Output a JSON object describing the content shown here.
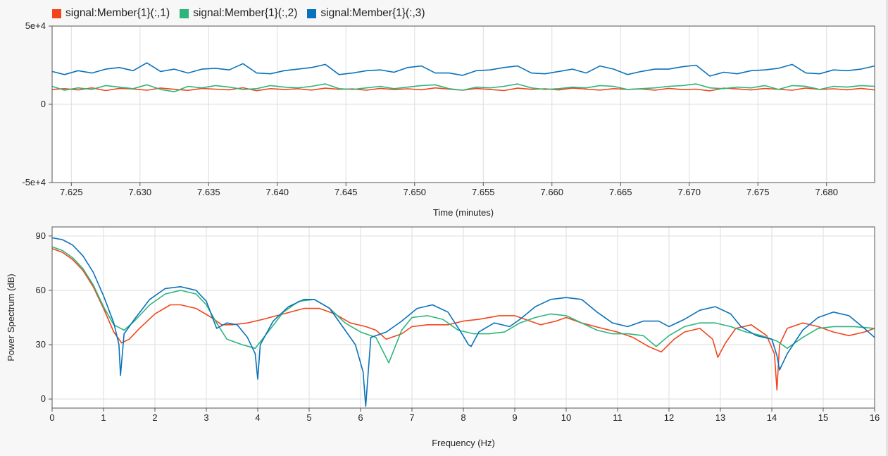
{
  "colors": {
    "series1": "#f2451c",
    "series2": "#2db57b",
    "series3": "#0a72ba",
    "grid": "#dddddd",
    "axis": "#333333"
  },
  "legend": [
    {
      "label": "signal:Member{1}(:,1)",
      "color": "#f2451c"
    },
    {
      "label": "signal:Member{1}(:,2)",
      "color": "#2db57b"
    },
    {
      "label": "signal:Member{1}(:,3)",
      "color": "#0a72ba"
    }
  ],
  "chart_data": [
    {
      "type": "line",
      "title": "",
      "xlabel": "Time (minutes)",
      "ylabel": "",
      "xlim": [
        7.6236,
        7.6835
      ],
      "ylim": [
        -50000,
        50000
      ],
      "xticks": [
        7.625,
        7.63,
        7.635,
        7.64,
        7.645,
        7.65,
        7.655,
        7.66,
        7.665,
        7.67,
        7.675,
        7.68
      ],
      "xtick_labels": [
        "7.625",
        "7.630",
        "7.635",
        "7.640",
        "7.645",
        "7.650",
        "7.655",
        "7.660",
        "7.665",
        "7.670",
        "7.675",
        "7.680"
      ],
      "yticks": [
        -50000,
        0,
        50000
      ],
      "ytick_labels": [
        "-5e+4",
        "0",
        "5e+4"
      ],
      "grid": true,
      "legend_position": "top-left",
      "series": [
        {
          "name": "signal:Member{1}(:,1)",
          "color": "#f2451c",
          "x": [
            7.6236,
            7.6245,
            7.6255,
            7.6265,
            7.6275,
            7.6285,
            7.6295,
            7.6305,
            7.6315,
            7.6325,
            7.6335,
            7.6345,
            7.6355,
            7.6365,
            7.6375,
            7.6385,
            7.6395,
            7.6405,
            7.6415,
            7.6425,
            7.6435,
            7.6445,
            7.6455,
            7.6465,
            7.6475,
            7.6485,
            7.6495,
            7.6505,
            7.6515,
            7.6525,
            7.6535,
            7.6545,
            7.6555,
            7.6565,
            7.6575,
            7.6585,
            7.6595,
            7.6605,
            7.6615,
            7.6625,
            7.6635,
            7.6645,
            7.6655,
            7.6665,
            7.6675,
            7.6685,
            7.6695,
            7.6705,
            7.6715,
            7.6725,
            7.6735,
            7.6745,
            7.6755,
            7.6765,
            7.6775,
            7.6785,
            7.6795,
            7.6805,
            7.6815,
            7.6825,
            7.6835
          ],
          "y": [
            9500,
            10000,
            9200,
            10500,
            8800,
            10200,
            9800,
            9000,
            10400,
            9600,
            8900,
            10100,
            9700,
            9300,
            10600,
            8700,
            10000,
            9500,
            9900,
            9100,
            10300,
            9600,
            9800,
            9000,
            10200,
            9400,
            9900,
            9300,
            10500,
            9700,
            9000,
            10100,
            9500,
            8800,
            10300,
            9600,
            9900,
            9200,
            10400,
            9700,
            9100,
            10000,
            9500,
            9800,
            9000,
            10200,
            9400,
            9700,
            8600,
            10300,
            9800,
            9200,
            10100,
            9600,
            9000,
            10400,
            9500,
            9900,
            9300,
            10200,
            9200
          ]
        },
        {
          "name": "signal:Member{1}(:,2)",
          "color": "#2db57b",
          "x": [
            7.6236,
            7.6245,
            7.6255,
            7.6265,
            7.6275,
            7.6285,
            7.6295,
            7.6305,
            7.6315,
            7.6325,
            7.6335,
            7.6345,
            7.6355,
            7.6365,
            7.6375,
            7.6385,
            7.6395,
            7.6405,
            7.6415,
            7.6425,
            7.6435,
            7.6445,
            7.6455,
            7.6465,
            7.6475,
            7.6485,
            7.6495,
            7.6505,
            7.6515,
            7.6525,
            7.6535,
            7.6545,
            7.6555,
            7.6565,
            7.6575,
            7.6585,
            7.6595,
            7.6605,
            7.6615,
            7.6625,
            7.6635,
            7.6645,
            7.6655,
            7.6665,
            7.6675,
            7.6685,
            7.6695,
            7.6705,
            7.6715,
            7.6725,
            7.6735,
            7.6745,
            7.6755,
            7.6765,
            7.6775,
            7.6785,
            7.6795,
            7.6805,
            7.6815,
            7.6825,
            7.6835
          ],
          "y": [
            11500,
            9000,
            10500,
            9500,
            12000,
            11000,
            10000,
            12500,
            9500,
            8000,
            11500,
            10500,
            12000,
            11000,
            9500,
            10000,
            12000,
            11000,
            10500,
            11500,
            13000,
            10000,
            9500,
            10500,
            11500,
            10000,
            11000,
            12000,
            12500,
            10000,
            9000,
            11000,
            10500,
            11500,
            13000,
            10500,
            9500,
            10000,
            11000,
            10500,
            12000,
            11500,
            9500,
            10000,
            10500,
            11500,
            12000,
            13000,
            10500,
            10000,
            11000,
            10500,
            12000,
            9500,
            12000,
            11500,
            9500,
            11500,
            11000,
            12000,
            11500
          ]
        },
        {
          "name": "signal:Member{1}(:,3)",
          "color": "#0a72ba",
          "x": [
            7.6236,
            7.6245,
            7.6255,
            7.6265,
            7.6275,
            7.6285,
            7.6295,
            7.6305,
            7.6315,
            7.6325,
            7.6335,
            7.6345,
            7.6355,
            7.6365,
            7.6375,
            7.6385,
            7.6395,
            7.6405,
            7.6415,
            7.6425,
            7.6435,
            7.6445,
            7.6455,
            7.6465,
            7.6475,
            7.6485,
            7.6495,
            7.6505,
            7.6515,
            7.6525,
            7.6535,
            7.6545,
            7.6555,
            7.6565,
            7.6575,
            7.6585,
            7.6595,
            7.6605,
            7.6615,
            7.6625,
            7.6635,
            7.6645,
            7.6655,
            7.6665,
            7.6675,
            7.6685,
            7.6695,
            7.6705,
            7.6715,
            7.6725,
            7.6735,
            7.6745,
            7.6755,
            7.6765,
            7.6775,
            7.6785,
            7.6795,
            7.6805,
            7.6815,
            7.6825,
            7.6835
          ],
          "y": [
            21000,
            19000,
            21500,
            20000,
            22500,
            23500,
            21500,
            26500,
            21000,
            22500,
            20000,
            22500,
            23000,
            22000,
            26000,
            20000,
            19500,
            21500,
            22500,
            23500,
            25500,
            19000,
            20000,
            21500,
            22000,
            20500,
            23500,
            24500,
            20000,
            20000,
            18500,
            21500,
            22000,
            23500,
            24500,
            20000,
            19500,
            21000,
            22500,
            20000,
            24500,
            22500,
            19000,
            21000,
            22500,
            22500,
            24000,
            25000,
            18000,
            20500,
            19500,
            21500,
            22000,
            23000,
            25500,
            20000,
            19500,
            22000,
            21500,
            22500,
            24500
          ]
        }
      ]
    },
    {
      "type": "line",
      "title": "",
      "xlabel": "Frequency (Hz)",
      "ylabel": "Power Spectrum (dB)",
      "xlim": [
        0,
        16
      ],
      "ylim": [
        -5,
        95
      ],
      "xticks": [
        0,
        1,
        2,
        3,
        4,
        5,
        6,
        7,
        8,
        9,
        10,
        11,
        12,
        13,
        14,
        15,
        16
      ],
      "xtick_labels": [
        "0",
        "1",
        "2",
        "3",
        "4",
        "5",
        "6",
        "7",
        "8",
        "9",
        "10",
        "11",
        "12",
        "13",
        "14",
        "15",
        "16"
      ],
      "yticks": [
        0,
        30,
        60,
        90
      ],
      "ytick_labels": [
        "0",
        "30",
        "60",
        "90"
      ],
      "grid": true,
      "series": [
        {
          "name": "signal:Member{1}(:,1)",
          "color": "#f2451c",
          "x": [
            0,
            0.2,
            0.4,
            0.6,
            0.8,
            1.0,
            1.2,
            1.35,
            1.5,
            1.7,
            2.0,
            2.3,
            2.5,
            2.8,
            3.1,
            3.3,
            3.5,
            3.8,
            4.1,
            4.5,
            4.9,
            5.2,
            5.5,
            5.8,
            6.1,
            6.3,
            6.5,
            6.8,
            7.0,
            7.3,
            7.7,
            8.0,
            8.3,
            8.7,
            9.0,
            9.3,
            9.5,
            9.8,
            10.0,
            10.3,
            10.7,
            11.0,
            11.3,
            11.6,
            11.85,
            12.1,
            12.3,
            12.6,
            12.85,
            12.95,
            13.1,
            13.3,
            13.6,
            13.9,
            14.05,
            14.1,
            14.15,
            14.3,
            14.6,
            14.9,
            15.2,
            15.5,
            15.8,
            16.0
          ],
          "y": [
            83,
            81,
            77,
            71,
            62,
            50,
            37,
            31,
            33,
            39,
            47,
            52,
            52,
            50,
            45,
            41,
            41,
            42,
            44,
            47,
            50,
            50,
            47,
            42,
            40,
            38,
            33,
            36,
            40,
            41,
            41,
            43,
            44,
            46,
            46,
            43,
            41,
            43,
            45,
            42,
            39,
            37,
            34,
            29,
            26,
            33,
            37,
            39,
            33,
            23,
            31,
            39,
            41,
            35,
            25,
            5,
            30,
            39,
            42,
            40,
            37,
            35,
            37,
            39
          ]
        },
        {
          "name": "signal:Member{1}(:,2)",
          "color": "#2db57b",
          "x": [
            0,
            0.2,
            0.4,
            0.6,
            0.8,
            1.0,
            1.2,
            1.4,
            1.6,
            1.9,
            2.2,
            2.5,
            2.8,
            3.0,
            3.2,
            3.4,
            3.7,
            3.95,
            4.2,
            4.5,
            4.8,
            5.1,
            5.4,
            5.7,
            6.0,
            6.3,
            6.55,
            6.8,
            7.0,
            7.3,
            7.6,
            7.9,
            8.2,
            8.5,
            8.8,
            9.1,
            9.4,
            9.7,
            10.0,
            10.3,
            10.6,
            10.9,
            11.2,
            11.5,
            11.75,
            12.0,
            12.3,
            12.6,
            12.9,
            13.2,
            13.5,
            13.8,
            14.1,
            14.3,
            14.6,
            14.9,
            15.2,
            15.6,
            16.0
          ],
          "y": [
            84,
            82,
            78,
            72,
            63,
            51,
            41,
            38,
            43,
            52,
            58,
            60,
            58,
            52,
            42,
            33,
            30,
            28,
            37,
            48,
            54,
            55,
            50,
            42,
            37,
            34,
            20,
            38,
            45,
            46,
            44,
            38,
            36,
            36,
            37,
            42,
            45,
            47,
            46,
            42,
            38,
            36,
            36,
            35,
            29,
            35,
            40,
            42,
            42,
            40,
            37,
            35,
            32,
            28,
            34,
            39,
            40,
            40,
            39
          ]
        },
        {
          "name": "signal:Member{1}(:,3)",
          "color": "#0a72ba",
          "x": [
            0,
            0.2,
            0.4,
            0.6,
            0.8,
            1.0,
            1.2,
            1.3,
            1.33,
            1.4,
            1.6,
            1.9,
            2.2,
            2.5,
            2.8,
            3.0,
            3.2,
            3.4,
            3.6,
            3.8,
            3.95,
            4.0,
            4.05,
            4.3,
            4.6,
            4.9,
            5.1,
            5.4,
            5.7,
            5.9,
            6.05,
            6.1,
            6.2,
            6.5,
            6.8,
            7.1,
            7.4,
            7.7,
            7.95,
            8.1,
            8.15,
            8.3,
            8.6,
            8.9,
            9.1,
            9.4,
            9.7,
            10.0,
            10.3,
            10.6,
            10.9,
            11.2,
            11.5,
            11.8,
            12.0,
            12.3,
            12.6,
            12.9,
            13.2,
            13.4,
            13.7,
            14.0,
            14.1,
            14.15,
            14.3,
            14.6,
            14.9,
            15.2,
            15.5,
            15.8,
            16.0
          ],
          "y": [
            89,
            88,
            85,
            79,
            70,
            57,
            42,
            30,
            13,
            36,
            44,
            55,
            61,
            62,
            60,
            54,
            39,
            42,
            41,
            34,
            25,
            11,
            30,
            43,
            51,
            55,
            55,
            50,
            38,
            30,
            15,
            -4,
            34,
            37,
            43,
            50,
            52,
            48,
            37,
            30,
            29,
            37,
            42,
            40,
            44,
            51,
            55,
            56,
            55,
            48,
            42,
            40,
            43,
            43,
            40,
            44,
            49,
            51,
            47,
            40,
            35,
            33,
            24,
            16,
            25,
            38,
            45,
            48,
            46,
            39,
            34
          ]
        }
      ]
    }
  ]
}
